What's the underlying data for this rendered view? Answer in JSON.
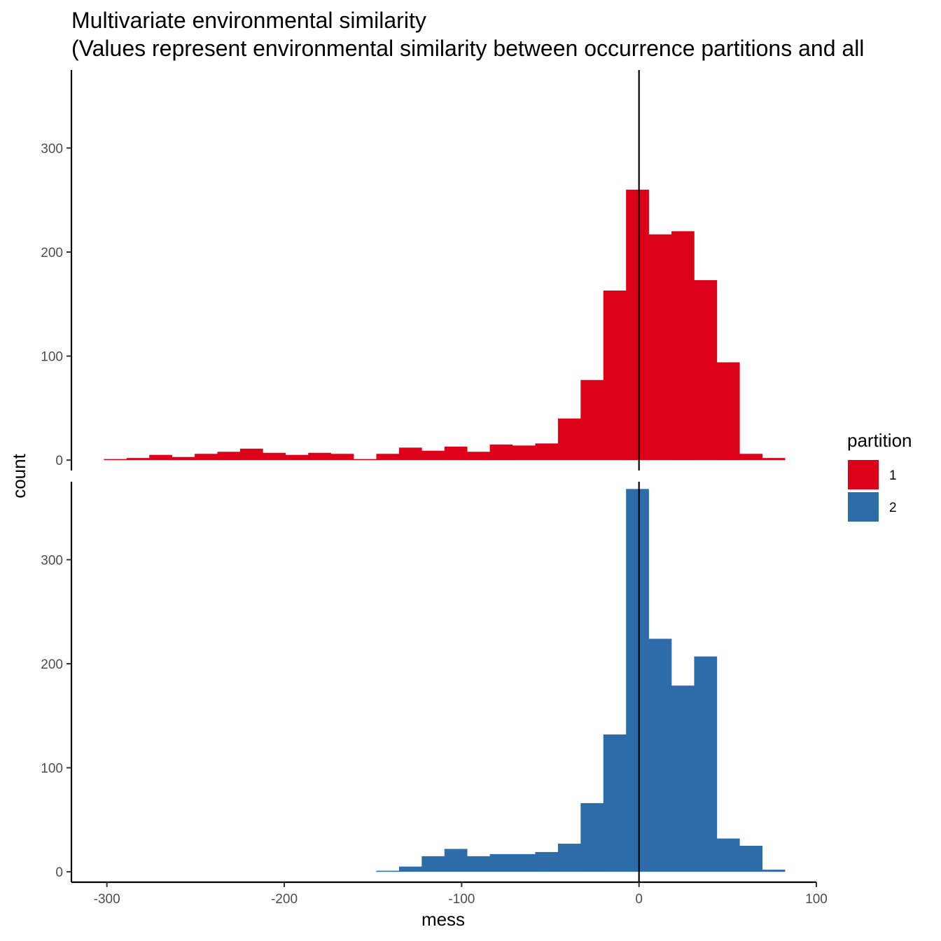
{
  "chart_data": {
    "type": "bar",
    "title": "Multivariate environmental similarity",
    "subtitle": "(Values represent environmental similarity between occurrence partitions and all",
    "xlabel": "mess",
    "ylabel": "count",
    "xlim": [
      -320,
      100
    ],
    "ylim": [
      -10,
      375
    ],
    "x_ticks": [
      -300,
      -200,
      -100,
      0,
      100
    ],
    "x_tick_labels": [
      "-300",
      "-200",
      "-100",
      "0",
      "100"
    ],
    "y_ticks": [
      0,
      100,
      200,
      300
    ],
    "y_tick_labels": [
      "0",
      "100",
      "200",
      "300"
    ],
    "grid": false,
    "legend": {
      "title": "partition",
      "position": "right"
    },
    "reference_line_x": 0,
    "bin_width": 12.8,
    "x_bin_starts": [
      -301.7,
      -288.9,
      -276.1,
      -263.3,
      -250.5,
      -237.7,
      -224.9,
      -212.1,
      -199.3,
      -186.5,
      -173.7,
      -160.9,
      -148.1,
      -135.3,
      -122.5,
      -109.7,
      -96.9,
      -84.1,
      -71.3,
      -58.5,
      -45.7,
      -32.9,
      -20.1,
      -7.3,
      5.5,
      18.3,
      31.1,
      43.9,
      56.7,
      69.5
    ],
    "series": [
      {
        "name": "1",
        "color": "#DC0019",
        "values": [
          1,
          2,
          5,
          3,
          6,
          8,
          11,
          7,
          5,
          7,
          6,
          1,
          6,
          12,
          9,
          13,
          8,
          15,
          14,
          16,
          40,
          77,
          163,
          260,
          217,
          220,
          173,
          94,
          6,
          2
        ]
      },
      {
        "name": "2",
        "color": "#2D6BA9",
        "values": [
          0,
          0,
          0,
          0,
          0,
          0,
          0,
          0,
          0,
          0,
          0,
          0,
          1,
          5,
          15,
          22,
          15,
          17,
          17,
          19,
          27,
          66,
          132,
          368,
          224,
          179,
          207,
          32,
          25,
          2
        ]
      }
    ]
  }
}
